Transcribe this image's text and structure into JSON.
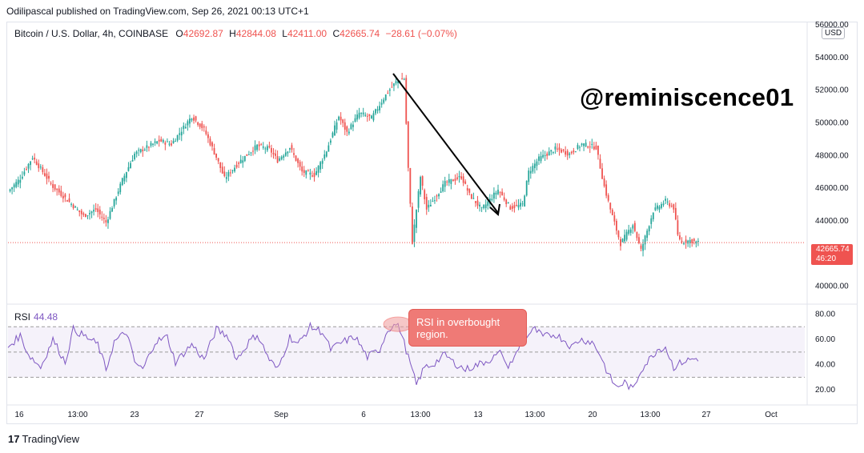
{
  "header": {
    "published": "Odilipascal published on TradingView.com, Sep 26, 2021 00:13 UTC+1",
    "symbol": "Bitcoin / U.S. Dollar, 4h, COINBASE",
    "o_label": "O",
    "o_value": "42692.87",
    "h_label": "H",
    "h_value": "42844.08",
    "l_label": "L",
    "l_value": "42411.00",
    "c_label": "C",
    "c_value": "42665.74",
    "change": "−28.61 (−0.07%)"
  },
  "currency": "USD",
  "watermark": "@reminiscence01",
  "rsi_panel": {
    "label": "RSI",
    "value": "44.48"
  },
  "annotation": {
    "line1": "RSI in overbought",
    "line2": "region."
  },
  "last_price": {
    "value": "42665.74",
    "countdown": "46:20"
  },
  "footer": {
    "logo": "17",
    "brand": "TradingView"
  },
  "colors": {
    "up": "#26a69a",
    "down": "#ef5350",
    "rsi": "#7e57c2",
    "rsi_band": "#ede7f6"
  },
  "chart_data": [
    {
      "type": "candlestick",
      "ylim": [
        39000,
        56000
      ],
      "price_ticks": [
        "56000.00",
        "54000.00",
        "52000.00",
        "50000.00",
        "48000.00",
        "46000.00",
        "44000.00",
        "40000.00"
      ],
      "x_ticks": [
        "16",
        "13:00",
        "23",
        "27",
        "Sep",
        "6",
        "13:00",
        "13",
        "13:00",
        "20",
        "13:00",
        "27",
        "Oct"
      ],
      "close_path": [
        [
          0,
          45800
        ],
        [
          6,
          46600
        ],
        [
          12,
          47900
        ],
        [
          22,
          46100
        ],
        [
          28,
          45400
        ],
        [
          37,
          44300
        ],
        [
          43,
          44700
        ],
        [
          48,
          43900
        ],
        [
          56,
          46500
        ],
        [
          62,
          48100
        ],
        [
          74,
          48900
        ],
        [
          80,
          48700
        ],
        [
          90,
          50400
        ],
        [
          96,
          49600
        ],
        [
          102,
          47900
        ],
        [
          106,
          46600
        ],
        [
          114,
          47700
        ],
        [
          122,
          48600
        ],
        [
          128,
          48400
        ],
        [
          132,
          47700
        ],
        [
          138,
          48500
        ],
        [
          144,
          47000
        ],
        [
          150,
          46800
        ],
        [
          156,
          48300
        ],
        [
          162,
          50400
        ],
        [
          166,
          49400
        ],
        [
          172,
          50600
        ],
        [
          178,
          50300
        ],
        [
          186,
          51900
        ],
        [
          190,
          52500
        ],
        [
          194,
          52700
        ],
        [
          196,
          47200
        ],
        [
          198,
          42700
        ],
        [
          202,
          46700
        ],
        [
          205,
          44700
        ],
        [
          214,
          46300
        ],
        [
          222,
          46700
        ],
        [
          226,
          45600
        ],
        [
          232,
          44700
        ],
        [
          240,
          45900
        ],
        [
          246,
          44800
        ],
        [
          252,
          45000
        ],
        [
          255,
          47000
        ],
        [
          260,
          47800
        ],
        [
          268,
          48400
        ],
        [
          275,
          48100
        ],
        [
          281,
          48700
        ],
        [
          288,
          48500
        ],
        [
          292,
          46100
        ],
        [
          295,
          44700
        ],
        [
          300,
          42600
        ],
        [
          306,
          43800
        ],
        [
          310,
          42200
        ],
        [
          316,
          44600
        ],
        [
          322,
          45200
        ],
        [
          326,
          44800
        ],
        [
          328,
          43100
        ],
        [
          330,
          42700
        ],
        [
          334,
          42800
        ],
        [
          338,
          42670
        ]
      ],
      "last_price": 42665.74
    },
    {
      "type": "line",
      "name": "RSI",
      "ylim": [
        10,
        86
      ],
      "y_ticks": [
        "80.00",
        "60.00",
        "40.00",
        "20.00"
      ],
      "bands": [
        30,
        50,
        70
      ],
      "values_path": [
        [
          0,
          54
        ],
        [
          6,
          63
        ],
        [
          10,
          48
        ],
        [
          16,
          38
        ],
        [
          22,
          60
        ],
        [
          28,
          42
        ],
        [
          32,
          68
        ],
        [
          38,
          62
        ],
        [
          44,
          56
        ],
        [
          48,
          36
        ],
        [
          52,
          58
        ],
        [
          58,
          66
        ],
        [
          62,
          42
        ],
        [
          66,
          36
        ],
        [
          72,
          58
        ],
        [
          78,
          62
        ],
        [
          82,
          42
        ],
        [
          90,
          56
        ],
        [
          96,
          44
        ],
        [
          102,
          68
        ],
        [
          108,
          62
        ],
        [
          112,
          44
        ],
        [
          118,
          58
        ],
        [
          122,
          64
        ],
        [
          128,
          44
        ],
        [
          132,
          36
        ],
        [
          138,
          62
        ],
        [
          142,
          56
        ],
        [
          148,
          70
        ],
        [
          154,
          66
        ],
        [
          158,
          52
        ],
        [
          164,
          58
        ],
        [
          170,
          62
        ],
        [
          176,
          46
        ],
        [
          182,
          52
        ],
        [
          186,
          68
        ],
        [
          190,
          72
        ],
        [
          192,
          68
        ],
        [
          196,
          46
        ],
        [
          200,
          24
        ],
        [
          204,
          38
        ],
        [
          208,
          40
        ],
        [
          214,
          48
        ],
        [
          218,
          42
        ],
        [
          224,
          36
        ],
        [
          230,
          40
        ],
        [
          236,
          44
        ],
        [
          242,
          50
        ],
        [
          244,
          38
        ],
        [
          248,
          45
        ],
        [
          252,
          60
        ],
        [
          258,
          68
        ],
        [
          262,
          62
        ],
        [
          268,
          64
        ],
        [
          272,
          60
        ],
        [
          276,
          54
        ],
        [
          280,
          60
        ],
        [
          286,
          58
        ],
        [
          290,
          48
        ],
        [
          294,
          32
        ],
        [
          298,
          22
        ],
        [
          302,
          26
        ],
        [
          306,
          20
        ],
        [
          310,
          36
        ],
        [
          314,
          44
        ],
        [
          318,
          52
        ],
        [
          322,
          54
        ],
        [
          326,
          38
        ],
        [
          330,
          42
        ],
        [
          334,
          44
        ],
        [
          338,
          45
        ]
      ]
    }
  ]
}
